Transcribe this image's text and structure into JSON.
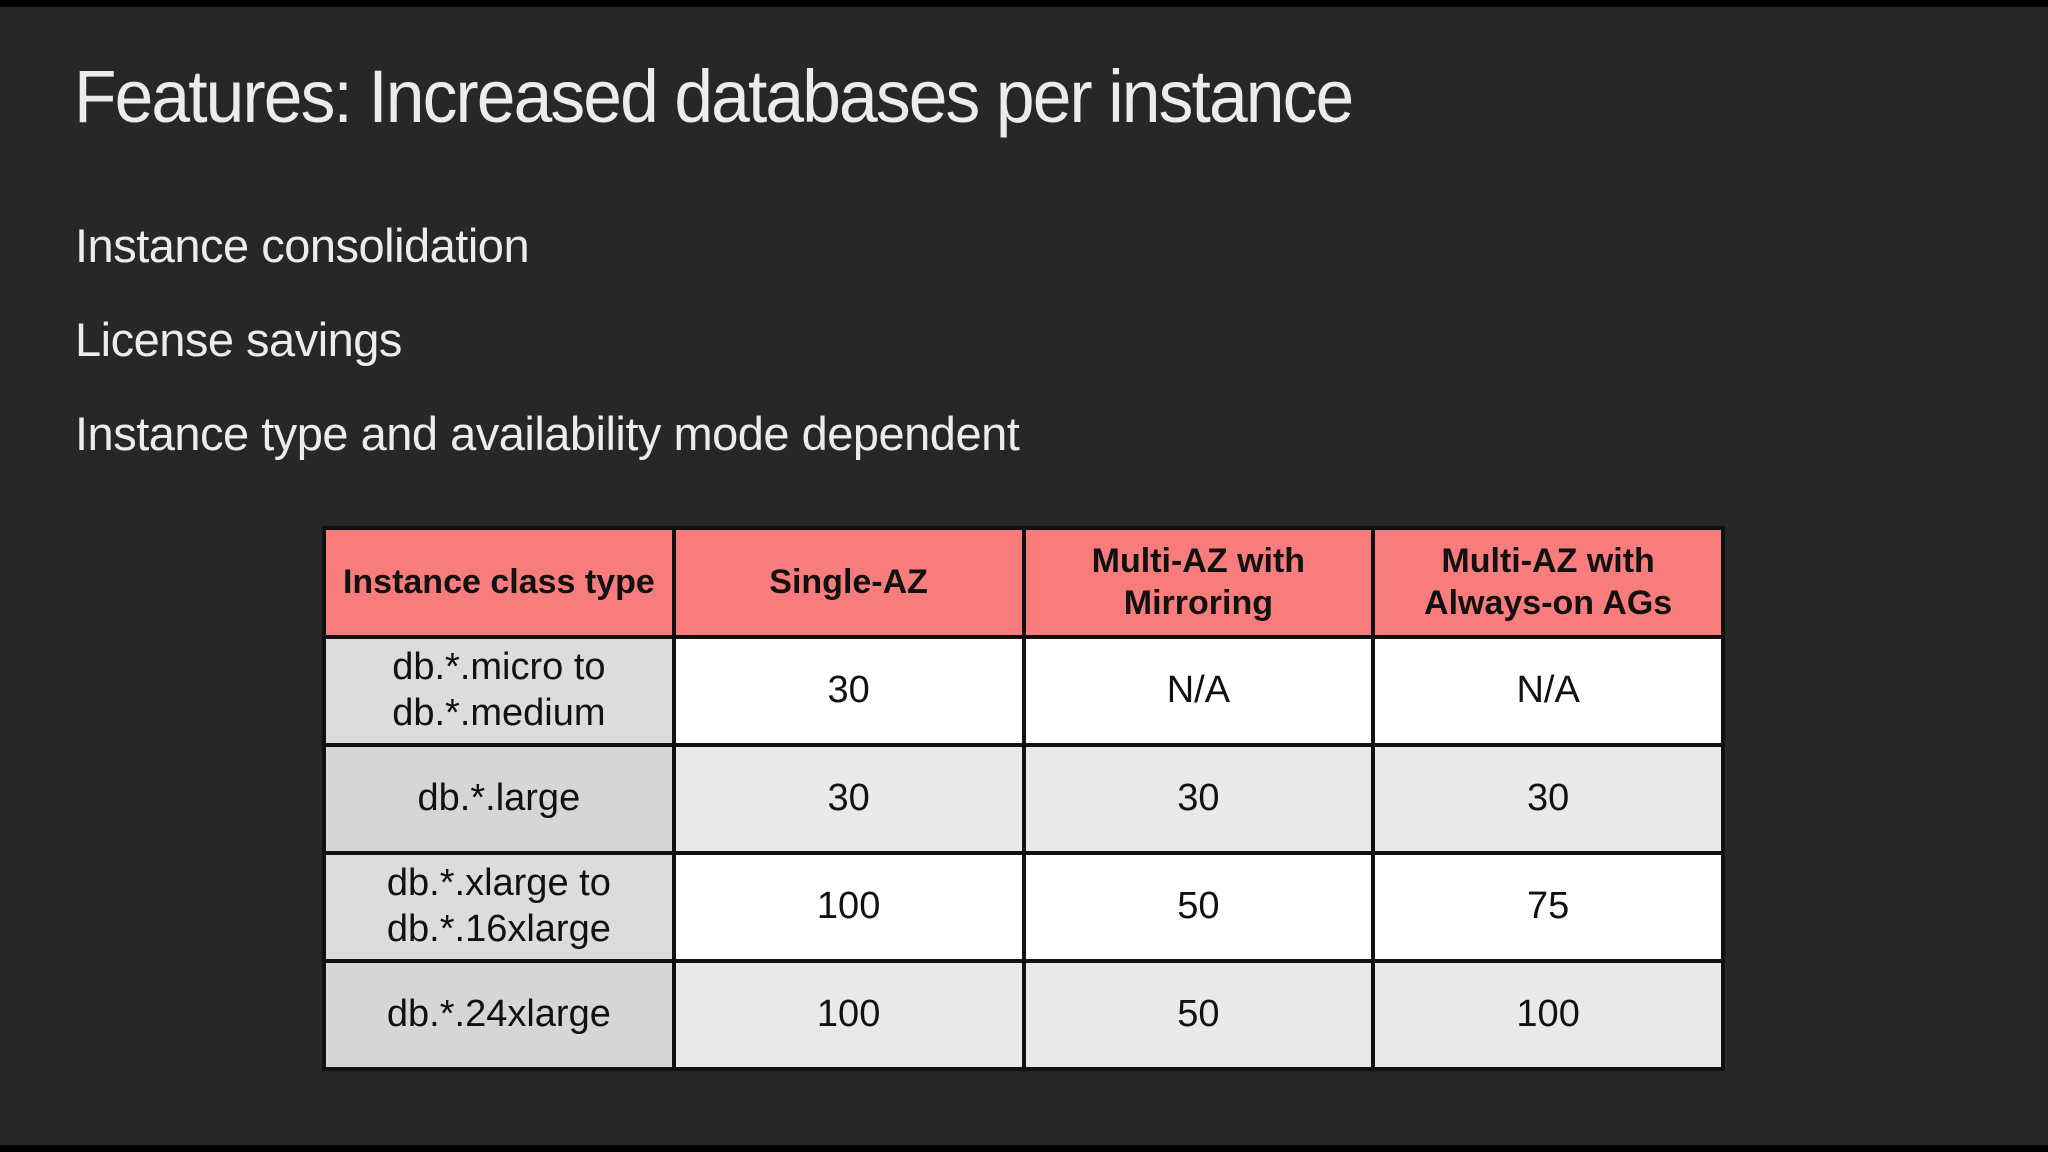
{
  "slide": {
    "title": "Features: Increased databases per instance",
    "bullets": [
      "Instance consolidation",
      "License savings",
      "Instance type and availability mode dependent"
    ]
  },
  "table": {
    "headers": [
      "Instance class type",
      "Single-AZ",
      "Multi-AZ with Mirroring",
      "Multi-AZ with Always-on AGs"
    ],
    "rows": [
      {
        "label": "db.*.micro to db.*.medium",
        "values": [
          "30",
          "N/A",
          "N/A"
        ]
      },
      {
        "label": "db.*.large",
        "values": [
          "30",
          "30",
          "30"
        ]
      },
      {
        "label": "db.*.xlarge to db.*.16xlarge",
        "values": [
          "100",
          "50",
          "75"
        ]
      },
      {
        "label": "db.*.24xlarge",
        "values": [
          "100",
          "50",
          "100"
        ]
      }
    ]
  },
  "colors": {
    "slide-bg": "#272727",
    "letterbox": "#000000",
    "title-text": "#ECECEC",
    "table-header-bg": "#F97C7C",
    "table-border": "#111111",
    "label-col-bg": "#DCDCDC",
    "label-col-alt-bg": "#D6D6D6",
    "row-bg": "#FFFFFF",
    "row-alt-bg": "#E9E9E9",
    "cell-text": "#111111"
  }
}
